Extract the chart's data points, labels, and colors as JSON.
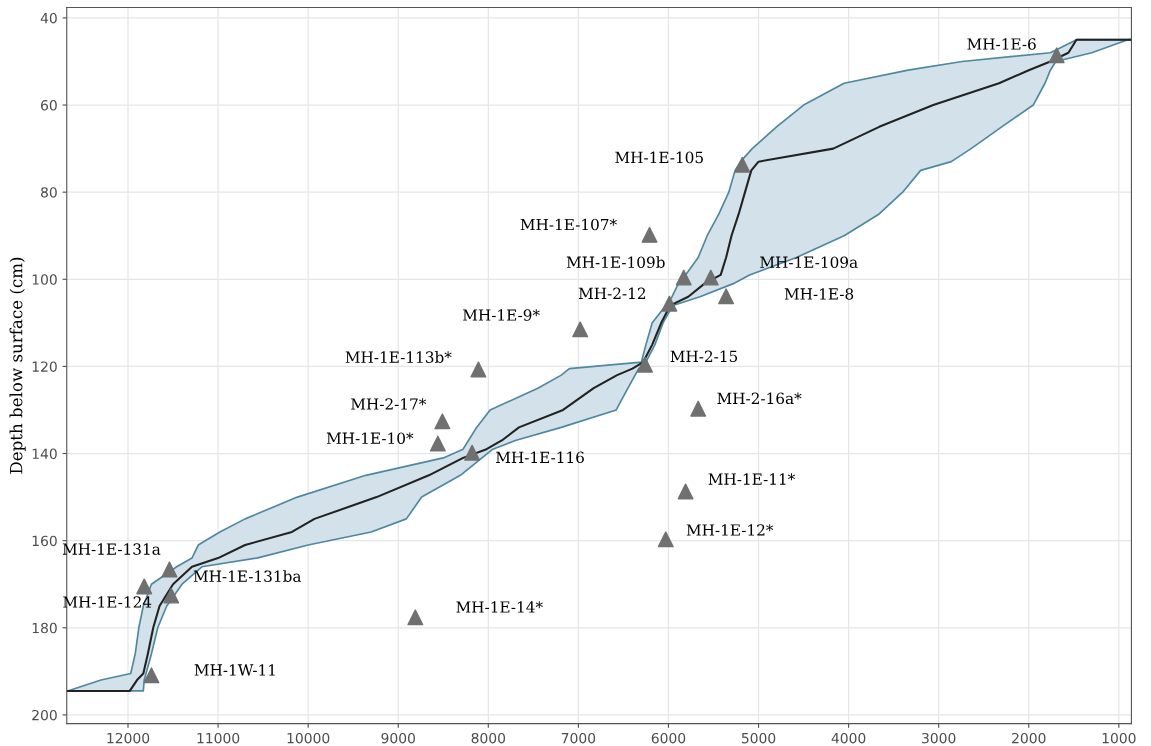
{
  "chart_data": {
    "type": "line",
    "orientation": "horizontal",
    "ylabel": "Depth below surface (cm)",
    "xlim": [
      12680,
      860
    ],
    "xticks": [
      12000,
      11000,
      10000,
      9000,
      8000,
      7000,
      6000,
      5000,
      4000,
      3000,
      2000,
      1000
    ],
    "ylim": [
      202,
      37.6
    ],
    "yticks": [
      40,
      60,
      80,
      100,
      120,
      140,
      160,
      180,
      200
    ],
    "grid": true,
    "series": [
      {
        "color": "#222222",
        "marker": "none",
        "x": [
          45,
          45,
          48,
          50,
          52,
          55,
          60,
          65,
          70,
          73,
          75,
          80,
          85,
          90,
          95,
          99,
          101,
          104,
          106,
          110,
          115,
          119,
          120.5,
          122,
          125,
          130,
          134,
          137,
          139,
          141,
          145,
          150,
          155,
          158,
          161,
          164,
          166,
          170,
          175,
          180,
          186,
          190.5,
          192,
          194.5,
          194.5
        ],
        "values": [
          860,
          1470,
          1560,
          1760,
          2000,
          2330,
          3060,
          3660,
          4170,
          5000,
          5080,
          5150,
          5220,
          5300,
          5360,
          5420,
          5600,
          5780,
          5980,
          6080,
          6180,
          6280,
          6400,
          6570,
          6830,
          7170,
          7660,
          7850,
          8020,
          8280,
          8660,
          9240,
          9930,
          10180,
          10700,
          11000,
          11290,
          11500,
          11650,
          11720,
          11780,
          11830,
          11900,
          11980,
          12670
        ],
        "lower": [
          860,
          900,
          1300,
          1700,
          1760,
          1820,
          1950,
          2300,
          2640,
          2860,
          3200,
          3400,
          3660,
          4050,
          4580,
          5100,
          5280,
          5650,
          5950,
          6060,
          6150,
          6250,
          6330,
          6370,
          6450,
          6580,
          7190,
          7700,
          7950,
          8070,
          8310,
          8740,
          8910,
          9300,
          10000,
          10570,
          11180,
          11400,
          11570,
          11670,
          11740,
          11800,
          11820,
          11830,
          12670
        ],
        "upper": [
          860,
          1470,
          1760,
          2740,
          3340,
          4050,
          4500,
          4800,
          5070,
          5200,
          5260,
          5330,
          5440,
          5570,
          5670,
          5810,
          5890,
          5960,
          6030,
          6180,
          6250,
          6300,
          7100,
          7190,
          7450,
          7980,
          8130,
          8220,
          8280,
          8500,
          9360,
          10120,
          10700,
          10980,
          11220,
          11290,
          11460,
          11740,
          11830,
          11880,
          11920,
          11970,
          12300,
          12670,
          12670
        ]
      },
      {
        "type": "scatter",
        "color": "#707070",
        "marker": "triangle",
        "x": [
          48.6,
          73.7,
          89.8,
          99.6,
          99.6,
          103.9,
          105.6,
          111.5,
          119.6,
          120.7,
          132.6,
          137.7,
          139.8,
          166.6,
          170.5,
          172.6,
          190.9,
          177.6,
          129.7,
          148.7,
          159.7
        ],
        "values": [
          1690,
          5180,
          6210,
          5830,
          5530,
          5360,
          5990,
          6980,
          6260,
          8110,
          8510,
          8560,
          8180,
          11540,
          11820,
          11520,
          11740,
          8810,
          5670,
          5810,
          6030
        ]
      }
    ],
    "annotations": [
      "MH-1E-6",
      "MH-1E-105",
      "MH-1E-107*",
      "MH-1E-109b",
      "MH-1E-109a",
      "MH-1E-8",
      "MH-2-12",
      "MH-1E-9*",
      "MH-2-15",
      "MH-1E-113b*",
      "MH-2-17*",
      "MH-1E-10*",
      "MH-1E-116",
      "MH-1E-131a",
      "MH-1E-124",
      "MH-1E-131ba",
      "MH-1W-11",
      "MH-1E-14*",
      "MH-2-16a*",
      "MH-1E-11*",
      "MH-1E-12*"
    ]
  }
}
